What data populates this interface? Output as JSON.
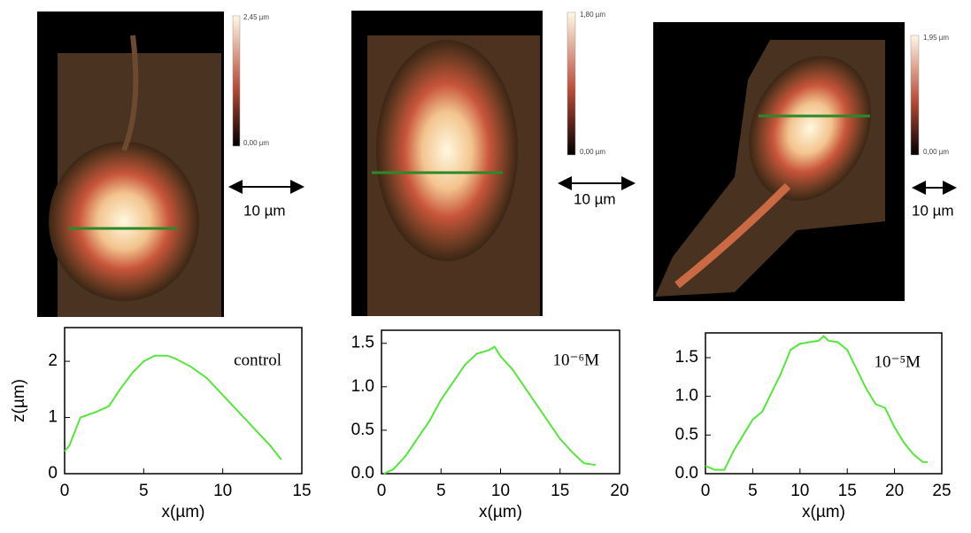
{
  "images": [
    {
      "scale_max": "2,45 µm",
      "scale_min": "0,00 µm",
      "scale_bar": "10 µm"
    },
    {
      "scale_max": "1,80 µm",
      "scale_min": "0,00 µm",
      "scale_bar": "10 µm"
    },
    {
      "scale_max": "1,95 µm",
      "scale_min": "0,00 µm",
      "scale_bar": "10 µm"
    }
  ],
  "chart_data": [
    {
      "type": "line",
      "annotation": "control",
      "xlabel": "x(µm)",
      "ylabel": "z(µm)",
      "xlim": [
        0,
        15
      ],
      "ylim": [
        0,
        2.6
      ],
      "xticks": [
        0,
        5,
        10,
        15
      ],
      "yticks": [
        0,
        1,
        2
      ],
      "series": [
        {
          "color": "#55e63a",
          "x": [
            0,
            0.3,
            1,
            2,
            2.8,
            3.5,
            4.3,
            5,
            5.7,
            6.5,
            7,
            8,
            9,
            10,
            11,
            12,
            13,
            13.7
          ],
          "values": [
            0.4,
            0.5,
            1.0,
            1.1,
            1.2,
            1.5,
            1.8,
            2.0,
            2.1,
            2.1,
            2.05,
            1.9,
            1.7,
            1.4,
            1.1,
            0.8,
            0.5,
            0.25
          ]
        }
      ]
    },
    {
      "type": "line",
      "annotation": "10⁻⁶M",
      "xlabel": "x(µm)",
      "xlim": [
        0,
        20
      ],
      "ylim": [
        0,
        1.65
      ],
      "xticks": [
        0,
        5,
        10,
        15,
        20
      ],
      "yticks": [
        {
          "value": 0,
          "label": "0.0"
        },
        {
          "value": 0.5,
          "label": "0.5"
        },
        {
          "value": 1,
          "label": "1.0"
        },
        {
          "value": 1.5,
          "label": "1.5"
        }
      ],
      "series": [
        {
          "color": "#55e63a",
          "x": [
            0.2,
            1,
            2,
            3,
            4,
            5,
            6,
            7,
            8,
            9,
            9.5,
            10,
            11,
            12,
            13,
            14,
            15,
            16,
            17,
            18
          ],
          "values": [
            0,
            0.05,
            0.2,
            0.4,
            0.6,
            0.85,
            1.05,
            1.25,
            1.38,
            1.42,
            1.46,
            1.35,
            1.2,
            1.0,
            0.8,
            0.6,
            0.4,
            0.25,
            0.12,
            0.1
          ]
        }
      ]
    },
    {
      "type": "line",
      "annotation": "10⁻⁵M",
      "xlabel": "x(µm)",
      "xlim": [
        0,
        25
      ],
      "ylim": [
        0,
        1.82
      ],
      "xticks": [
        0,
        5,
        10,
        15,
        20,
        25
      ],
      "yticks": [
        {
          "value": 0,
          "label": "0.0"
        },
        {
          "value": 0.5,
          "label": "0.5"
        },
        {
          "value": 1,
          "label": "1.0"
        },
        {
          "value": 1.5,
          "label": "1.5"
        }
      ],
      "series": [
        {
          "color": "#55e63a",
          "x": [
            0,
            1,
            2,
            3,
            4,
            5,
            6,
            7,
            8,
            9,
            10,
            11,
            12,
            12.5,
            13,
            14,
            15,
            16,
            17,
            18,
            19,
            20,
            21,
            22,
            23,
            23.5
          ],
          "values": [
            0.1,
            0.05,
            0.05,
            0.3,
            0.5,
            0.7,
            0.8,
            1.05,
            1.3,
            1.6,
            1.68,
            1.7,
            1.72,
            1.78,
            1.72,
            1.7,
            1.6,
            1.35,
            1.1,
            0.9,
            0.85,
            0.6,
            0.4,
            0.25,
            0.15,
            0.15
          ]
        }
      ]
    }
  ]
}
